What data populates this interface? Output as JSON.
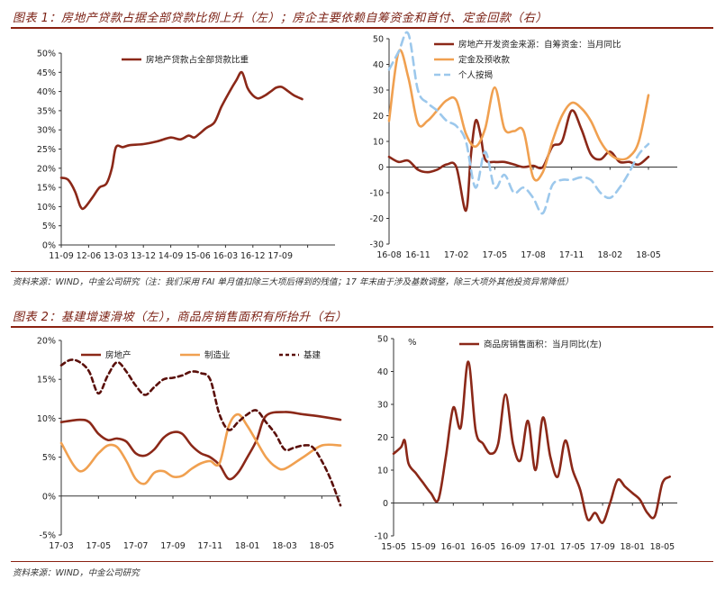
{
  "figure1": {
    "title": "图表 1：房地产贷款占据全部贷款比例上升（左）；房企主要依赖自筹资金和首付、定金回款（右）",
    "source": "资料来源：WIND，中金公司研究（注：我们采用 FAI 单月值扣除三大项后得到的残值；17 年末由于涉及基数调整，除三大项外其他投资异常降低）"
  },
  "figure2": {
    "title": "图表 2：基建增速滑坡（左），商品房销售面积有所抬升（右）",
    "source": "资料来源：WIND，中金公司研究"
  },
  "colors": {
    "dark_red": "#8b2818",
    "orange": "#f0a050",
    "light_blue": "#9cc8ec",
    "dark_maroon": "#5a0f0a",
    "accent": "#8b2212"
  },
  "chart_data": [
    {
      "id": "chart1",
      "type": "line",
      "ylim": [
        0,
        50
      ],
      "ytick_values": [
        0,
        5,
        10,
        15,
        20,
        25,
        30,
        35,
        40,
        45,
        50
      ],
      "ytick_labels": [
        "0%",
        "5%",
        "10%",
        "15%",
        "20%",
        "25%",
        "30%",
        "35%",
        "40%",
        "45%",
        "50%"
      ],
      "xlim": [
        0,
        20
      ],
      "xtick_values": [
        0,
        2,
        4,
        6,
        8,
        10,
        12,
        14,
        16,
        18
      ],
      "xtick_labels": [
        "11-09",
        "12-06",
        "13-03",
        "13-12",
        "14-09",
        "15-06",
        "16-03",
        "16-12",
        "17-09",
        ""
      ],
      "series": [
        {
          "name": "房地产贷款占全部贷款比重",
          "color": "#8b2818",
          "x": [
            0,
            0.5,
            1,
            1.4,
            1.7,
            2.3,
            2.8,
            3.3,
            3.7,
            4,
            4.5,
            5,
            6,
            7,
            8,
            8.7,
            9.3,
            9.7,
            10.1,
            10.6,
            11.2,
            11.7,
            12.3,
            12.8,
            13.2,
            13.6,
            14,
            14.4,
            14.9,
            15.3,
            15.7,
            16.1,
            16.6,
            17,
            17.6
          ],
          "y": [
            17.5,
            17,
            14,
            10,
            9.7,
            12.5,
            15,
            16,
            20,
            25.5,
            25.5,
            26,
            26.3,
            27,
            28,
            27.5,
            28.5,
            28,
            29,
            30.5,
            32,
            36,
            40,
            43,
            45,
            41,
            39,
            38.2,
            39,
            40,
            41,
            41.2,
            40,
            39,
            38
          ]
        }
      ],
      "legend": "top-left"
    },
    {
      "id": "chart2",
      "type": "line",
      "ylim": [
        -30,
        50
      ],
      "ytick_values": [
        -30,
        -20,
        -10,
        0,
        10,
        20,
        30,
        40,
        50
      ],
      "ytick_labels": [
        "-30",
        "-20",
        "-10",
        "0",
        "10",
        "20",
        "30",
        "40",
        "50"
      ],
      "xlim": [
        0,
        30
      ],
      "xtick_values": [
        0,
        3,
        7,
        11,
        15,
        19,
        23,
        27
      ],
      "xtick_labels": [
        "16-08",
        "16-11",
        "17-02",
        "17-05",
        "17-08",
        "17-11",
        "18-02",
        "18-05"
      ],
      "series": [
        {
          "name": "房地产开发资金来源：自筹资金：当月同比",
          "color": "#8b2818",
          "x": [
            0,
            1,
            2,
            3,
            4,
            5,
            6,
            7,
            8,
            8.5,
            9,
            9.5,
            10,
            11,
            12,
            13,
            14,
            15,
            16,
            17,
            18,
            19,
            20,
            21,
            22,
            23,
            24,
            25,
            26,
            27
          ],
          "y": [
            4,
            2,
            2.5,
            -1,
            -2,
            -1,
            1,
            0,
            -17,
            4,
            18,
            13,
            3,
            2,
            2,
            1,
            0,
            0.5,
            0,
            8,
            10,
            22,
            15,
            5,
            3,
            6,
            2,
            2,
            1,
            4
          ]
        },
        {
          "name": "定金及预收款",
          "color": "#f0a050",
          "x": [
            0,
            1,
            2,
            3,
            4,
            5,
            6,
            7,
            8,
            9,
            10,
            11,
            12,
            13,
            14,
            15,
            16,
            17,
            18,
            19,
            20,
            21,
            22,
            23,
            24,
            25,
            26,
            27
          ],
          "y": [
            18,
            45,
            35,
            17,
            18,
            22,
            26,
            26,
            13,
            8,
            15,
            31,
            15,
            14,
            14,
            -4,
            -2,
            10,
            20,
            25,
            23,
            18,
            10,
            5,
            3,
            4,
            10,
            28
          ]
        },
        {
          "name": "个人按揭",
          "color": "#9cc8ec",
          "x": [
            0,
            1,
            2,
            3,
            4,
            5,
            6,
            7,
            8,
            9,
            10,
            11,
            12,
            13,
            14,
            15,
            16,
            17,
            18,
            19,
            20,
            21,
            22,
            23,
            24,
            25,
            26,
            27
          ],
          "y": [
            38,
            45,
            52,
            30,
            25,
            22,
            18,
            16,
            10,
            -8,
            6,
            -8,
            -3,
            -10,
            -8,
            -12,
            -18,
            -7,
            -5,
            -5,
            -4,
            -5,
            -10,
            -12,
            -8,
            -2,
            5,
            9
          ]
        }
      ],
      "legend": "top-right"
    },
    {
      "id": "chart3",
      "type": "line",
      "ylim": [
        -5,
        20
      ],
      "ytick_values": [
        -5,
        0,
        5,
        10,
        15,
        20
      ],
      "ytick_labels": [
        "-5%",
        "0%",
        "5%",
        "10%",
        "15%",
        "20%"
      ],
      "xlim": [
        0,
        15
      ],
      "xtick_values": [
        0,
        2,
        4,
        6,
        8,
        10,
        12,
        14
      ],
      "xtick_labels": [
        "17-03",
        "17-05",
        "17-07",
        "17-09",
        "17-11",
        "18-01",
        "18-03",
        "18-05"
      ],
      "series": [
        {
          "name": "房地产",
          "color": "#8b2818",
          "x": [
            0,
            1,
            1.5,
            2,
            2.5,
            3,
            3.5,
            4,
            4.5,
            5,
            5.5,
            6,
            6.5,
            7,
            7.5,
            8,
            8.5,
            9,
            9.5,
            10,
            10.5,
            11,
            12,
            13,
            14,
            15
          ],
          "y": [
            9.5,
            9.8,
            9.5,
            8,
            7.2,
            7.4,
            7,
            5.5,
            5.2,
            6,
            7.5,
            8.2,
            8,
            6.5,
            5.5,
            5,
            4,
            2.2,
            3,
            5,
            7.2,
            10.3,
            10.8,
            10.5,
            10.2,
            9.8
          ]
        },
        {
          "name": "制造业",
          "color": "#f0a050",
          "x": [
            0,
            1,
            2,
            2.5,
            3,
            3.5,
            4,
            4.5,
            5,
            5.5,
            6,
            6.5,
            7,
            7.5,
            8,
            8.5,
            9,
            9.5,
            10,
            10.5,
            11,
            11.5,
            12,
            13,
            14,
            15
          ],
          "y": [
            6.8,
            3.2,
            5.5,
            6.5,
            6.3,
            4.5,
            2.2,
            1.6,
            3,
            3.2,
            2.5,
            2.6,
            3.5,
            4.2,
            4.5,
            4.2,
            9,
            10.5,
            9,
            7,
            5,
            3.8,
            3.5,
            5,
            6.5,
            6.5
          ]
        },
        {
          "name": "基建",
          "color": "#5a0f0a",
          "dash": true,
          "x": [
            0,
            0.5,
            1,
            1.5,
            2,
            2.5,
            3,
            3.5,
            4,
            4.5,
            5,
            5.5,
            6,
            6.5,
            7,
            7.5,
            8,
            8.5,
            9,
            9.5,
            10,
            10.5,
            11,
            11.5,
            12,
            12.5,
            13,
            13.5,
            14,
            14.5,
            15
          ],
          "y": [
            16.8,
            17.5,
            17.2,
            16,
            13.2,
            15.5,
            17.2,
            16,
            14.2,
            13,
            14,
            15,
            15.2,
            15.5,
            16,
            15.8,
            15,
            10.5,
            8.5,
            9.5,
            10.5,
            11,
            9.5,
            8,
            6,
            6.2,
            6.5,
            6.3,
            4.5,
            2,
            -1.2
          ]
        }
      ],
      "legend": "top"
    },
    {
      "id": "chart4",
      "type": "line",
      "ylim": [
        -10,
        50
      ],
      "ytick_values": [
        -10,
        0,
        10,
        20,
        30,
        40,
        50
      ],
      "ytick_labels": [
        "-10",
        "0",
        "10",
        "20",
        "30",
        "40",
        "50"
      ],
      "ylabel": "%",
      "xlim": [
        0,
        38
      ],
      "xtick_values": [
        0,
        4,
        8,
        12,
        16,
        20,
        24,
        28,
        32,
        36
      ],
      "xtick_labels": [
        "15-05",
        "15-09",
        "16-01",
        "16-05",
        "16-09",
        "17-01",
        "17-05",
        "17-09",
        "18-01",
        "18-05"
      ],
      "series": [
        {
          "name": "商品房销售面积：当月同比(左)",
          "color": "#8b2818",
          "x": [
            0,
            1,
            1.5,
            2,
            3,
            4,
            5,
            6,
            7,
            8,
            9,
            10,
            11,
            12,
            13,
            14,
            15,
            16,
            17,
            18,
            19,
            20,
            21,
            22,
            23,
            24,
            25,
            26,
            27,
            28,
            29,
            30,
            31,
            32,
            33,
            34,
            35,
            36,
            37
          ],
          "y": [
            15,
            17,
            19,
            12,
            9,
            6,
            3,
            1,
            14,
            29,
            23,
            43,
            22,
            18,
            15,
            18,
            33,
            18,
            13,
            25,
            10,
            26,
            14,
            8,
            19,
            10,
            4,
            -5,
            -3,
            -6,
            0,
            7,
            5,
            3,
            1,
            -3,
            -4,
            6,
            8
          ]
        }
      ],
      "legend": "top"
    }
  ]
}
